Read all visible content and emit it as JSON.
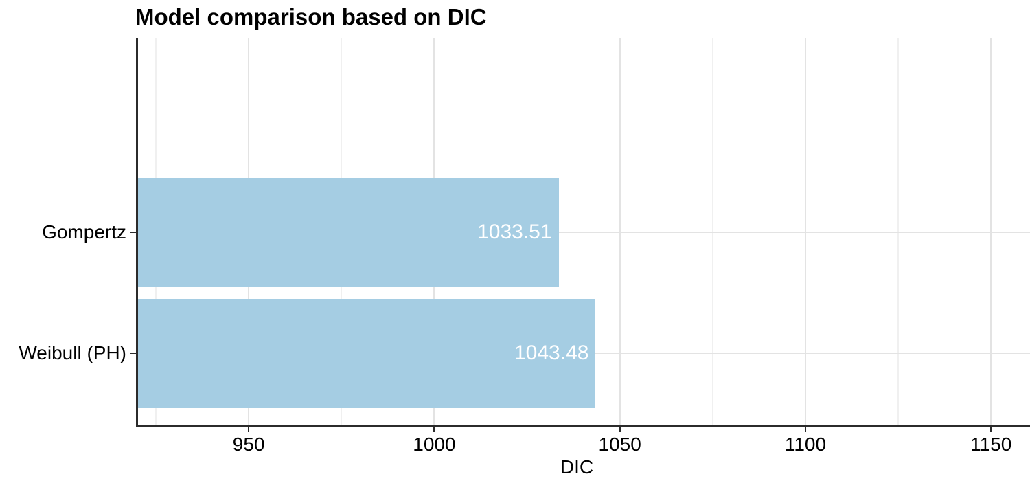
{
  "chart_data": {
    "type": "bar",
    "orientation": "horizontal",
    "title": "Model comparison based on DIC",
    "xlabel": "DIC",
    "ylabel": "",
    "categories": [
      "Gompertz",
      "Weibull (PH)"
    ],
    "values": [
      1033.51,
      1043.48
    ],
    "value_labels": [
      "1033.51",
      "1043.48"
    ],
    "xlim": [
      920,
      1160.5
    ],
    "x_major_ticks": [
      950,
      1000,
      1050,
      1100,
      1150
    ],
    "x_tick_labels": [
      "950",
      "1000",
      "1050",
      "1100",
      "1150"
    ],
    "x_minor_ticks": [
      925,
      975,
      1025,
      1075,
      1125
    ],
    "grid": true,
    "legend_position": "none",
    "colors": {
      "bar_fill": "#a5cde3",
      "bar_label_text": "#ffffff",
      "grid_major": "#e3e3e3",
      "grid_minor": "#f0f0f0",
      "axis_line": "#2b2b2b",
      "text": "#000000",
      "background": "#ffffff"
    }
  }
}
